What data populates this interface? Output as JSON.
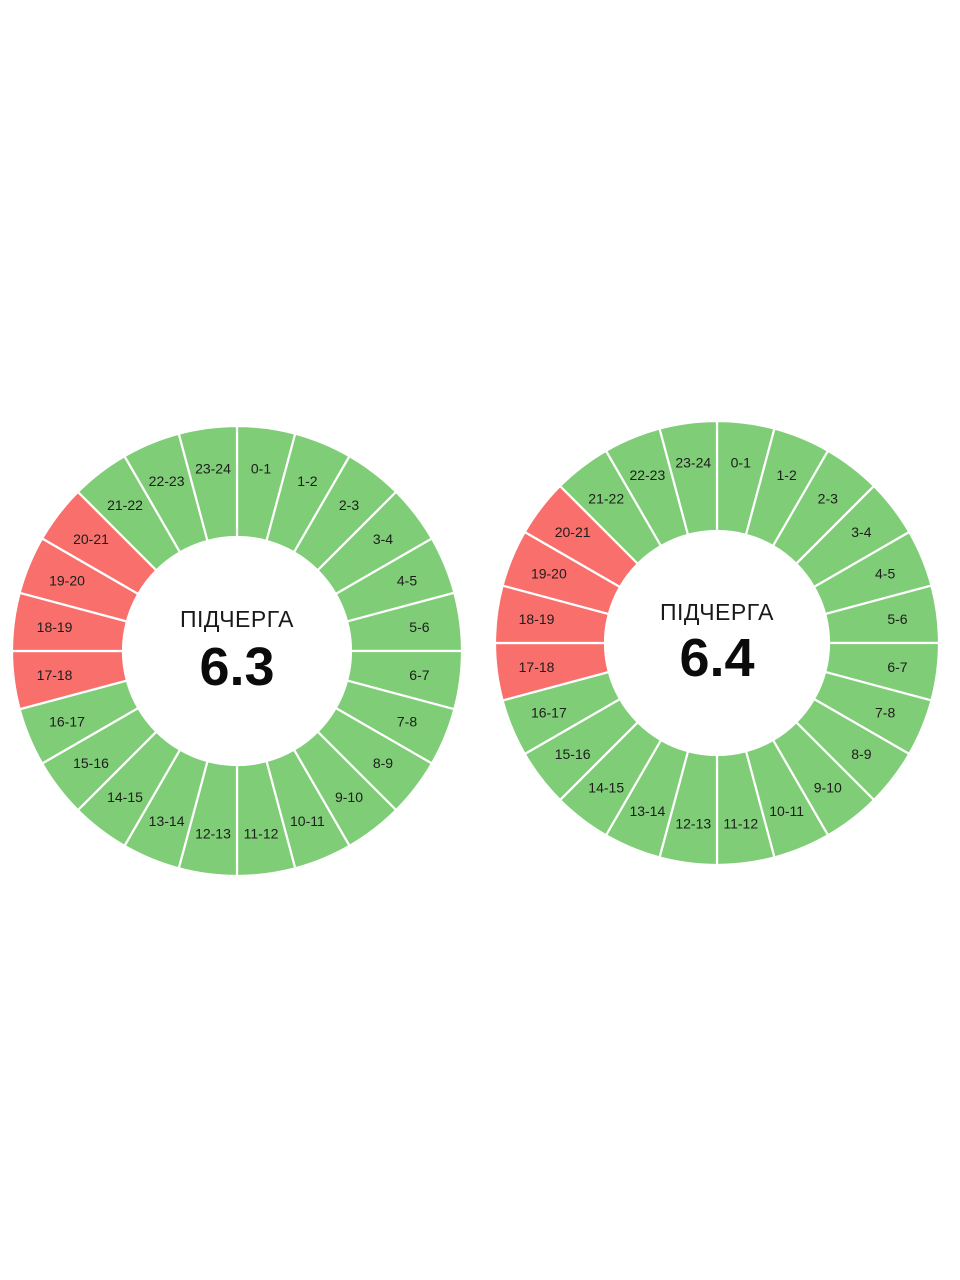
{
  "chart_data": [
    {
      "type": "pie",
      "subtitle": "ПІДЧЕРГА",
      "title": "6.3",
      "categories": [
        "0-1",
        "1-2",
        "2-3",
        "3-4",
        "4-5",
        "5-6",
        "6-7",
        "7-8",
        "8-9",
        "9-10",
        "10-11",
        "11-12",
        "12-13",
        "13-14",
        "14-15",
        "15-16",
        "16-17",
        "17-18",
        "18-19",
        "19-20",
        "20-21",
        "21-22",
        "22-23",
        "23-24"
      ],
      "status": [
        "on",
        "on",
        "on",
        "on",
        "on",
        "on",
        "on",
        "on",
        "on",
        "on",
        "on",
        "on",
        "on",
        "on",
        "on",
        "on",
        "on",
        "off",
        "off",
        "off",
        "off",
        "on",
        "on",
        "on"
      ],
      "values": [
        1,
        1,
        1,
        1,
        1,
        1,
        1,
        1,
        1,
        1,
        1,
        1,
        1,
        1,
        1,
        1,
        1,
        1,
        1,
        1,
        1,
        1,
        1,
        1
      ]
    },
    {
      "type": "pie",
      "subtitle": "ПІДЧЕРГА",
      "title": "6.4",
      "categories": [
        "0-1",
        "1-2",
        "2-3",
        "3-4",
        "4-5",
        "5-6",
        "6-7",
        "7-8",
        "8-9",
        "9-10",
        "10-11",
        "11-12",
        "12-13",
        "13-14",
        "14-15",
        "15-16",
        "16-17",
        "17-18",
        "18-19",
        "19-20",
        "20-21",
        "21-22",
        "22-23",
        "23-24"
      ],
      "status": [
        "on",
        "on",
        "on",
        "on",
        "on",
        "on",
        "on",
        "on",
        "on",
        "on",
        "on",
        "on",
        "on",
        "on",
        "on",
        "on",
        "on",
        "off",
        "off",
        "off",
        "off",
        "on",
        "on",
        "on"
      ],
      "values": [
        1,
        1,
        1,
        1,
        1,
        1,
        1,
        1,
        1,
        1,
        1,
        1,
        1,
        1,
        1,
        1,
        1,
        1,
        1,
        1,
        1,
        1,
        1,
        1
      ]
    }
  ],
  "colors": {
    "on": "#7fcd76",
    "off": "#f86f6c",
    "divider": "#ffffff"
  }
}
